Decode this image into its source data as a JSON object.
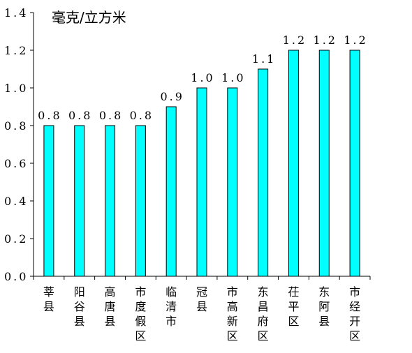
{
  "chart_data": {
    "type": "bar",
    "title": "",
    "unit": "毫克/立方米",
    "xlabel": "",
    "ylabel": "",
    "categories": [
      "莘县",
      "阳谷县",
      "高唐县",
      "市度假区",
      "临清市",
      "冠县",
      "市高新区",
      "东昌府区",
      "茌平区",
      "东阿县",
      "市经开区"
    ],
    "values": [
      0.8,
      0.8,
      0.8,
      0.8,
      0.9,
      1.0,
      1.0,
      1.1,
      1.2,
      1.2,
      1.2
    ],
    "value_labels": [
      "0.8",
      "0.8",
      "0.8",
      "0.8",
      "0.9",
      "1.0",
      "1.0",
      "1.1",
      "1.2",
      "1.2",
      "1.2"
    ],
    "ylim": [
      0,
      1.4
    ],
    "yticks": [
      "0.0",
      "0.2",
      "0.4",
      "0.6",
      "0.8",
      "1.0",
      "1.2",
      "1.4"
    ],
    "grid": false,
    "legend": "none",
    "bar_color": "#00ffff",
    "bar_stroke": "#000000"
  }
}
